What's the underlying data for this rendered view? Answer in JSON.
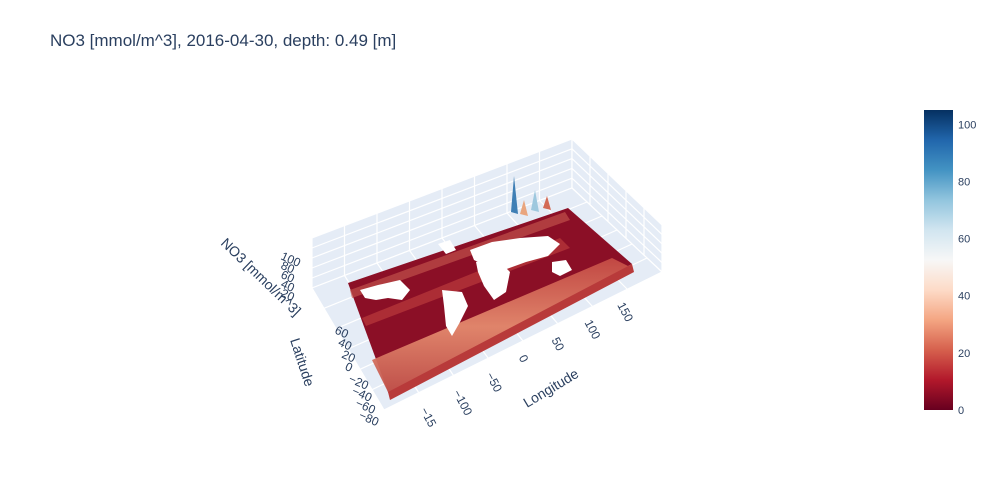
{
  "chart_data": {
    "type": "surface",
    "title": "NO3 [mmol/m^3], 2016-04-30, depth: 0.49 [m]",
    "variable": "NO3",
    "unit": "mmol/m^3",
    "date": "2016-04-30",
    "depth_m": 0.49,
    "x_axis": {
      "label": "Longitude",
      "ticks": [
        "−15",
        "−100",
        "−50",
        "0",
        "50",
        "100",
        "150"
      ]
    },
    "y_axis": {
      "label": "Latitude",
      "ticks": [
        "−80",
        "−60",
        "−40",
        "−20",
        "0",
        "20",
        "40",
        "60"
      ]
    },
    "z_axis": {
      "label": "NO3 [mmol/m^3]",
      "ticks": [
        "20",
        "40",
        "60",
        "80",
        "100"
      ]
    },
    "zlim": [
      0,
      105
    ],
    "grid": true,
    "colorscale": "RdBu",
    "colorbar": {
      "ticks": [
        "0",
        "20",
        "40",
        "60",
        "80",
        "100"
      ],
      "range": [
        0,
        105
      ],
      "colors": [
        "#67001f",
        "#b2182b",
        "#d6604d",
        "#f4a582",
        "#fddbc7",
        "#f7f7f7",
        "#d1e5f0",
        "#92c5de",
        "#4393c3",
        "#2166ac",
        "#053061"
      ]
    },
    "scene_background": "#e5ecf6",
    "land_color": "#ffffff",
    "surface_low_color": "#8b0f26",
    "surface_high_color": "#2166ac"
  }
}
